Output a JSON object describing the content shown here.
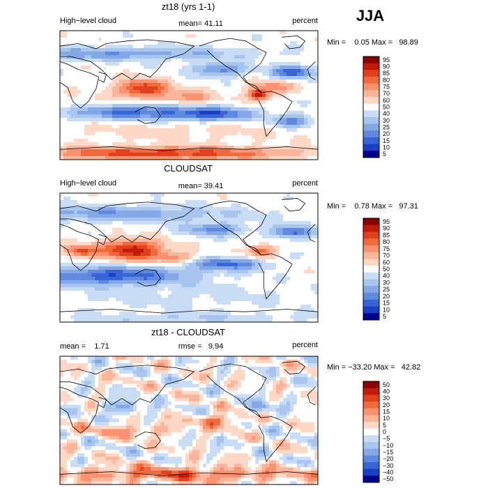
{
  "season_label": "JJA",
  "chart_data": [
    {
      "type": "heatmap",
      "title": "zt18 (yrs 1-1)",
      "left_label": "High−level cloud",
      "center_label": "mean=  41.11",
      "right_label": "percent",
      "stats_label": "Min =    0.05 Max =   98.89",
      "mean": 41.11,
      "min": 0.05,
      "max": 98.89,
      "units": "percent",
      "colorbar_levels": [
        "95",
        "90",
        "85",
        "80",
        "75",
        "70",
        "60",
        "50",
        "40",
        "30",
        "25",
        "20",
        "15",
        "10",
        "5"
      ],
      "colorbar_colors": [
        "#8b0000",
        "#c21a0a",
        "#e0401e",
        "#f06a3c",
        "#f89270",
        "#fbb59a",
        "#fdd8c6",
        "#ffffff",
        "#c9dcf5",
        "#a7c5ee",
        "#84a8e6",
        "#5e89de",
        "#3765d4",
        "#1a3fc4",
        "#00008b"
      ]
    },
    {
      "type": "heatmap",
      "title": "CLOUDSAT",
      "left_label": "High−level cloud",
      "center_label": "mean=  39.41",
      "right_label": "percent",
      "stats_label": "Min =    0.78 Max =   97.31",
      "mean": 39.41,
      "min": 0.78,
      "max": 97.31,
      "units": "percent",
      "colorbar_levels": [
        "95",
        "90",
        "85",
        "80",
        "75",
        "70",
        "60",
        "50",
        "40",
        "30",
        "25",
        "20",
        "15",
        "10",
        "5"
      ],
      "colorbar_colors": [
        "#8b0000",
        "#c21a0a",
        "#e0401e",
        "#f06a3c",
        "#f89270",
        "#fbb59a",
        "#fdd8c6",
        "#ffffff",
        "#c9dcf5",
        "#a7c5ee",
        "#84a8e6",
        "#5e89de",
        "#3765d4",
        "#1a3fc4",
        "#00008b"
      ]
    },
    {
      "type": "heatmap",
      "title": "zt18 - CLOUDSAT",
      "left_label": "mean =    1.71",
      "center_label": "rmse =   9.94",
      "right_label": "percent",
      "stats_label": "Min = −33.20 Max =   42.82",
      "mean": 1.71,
      "rmse": 9.94,
      "min": -33.2,
      "max": 42.82,
      "units": "percent",
      "colorbar_levels": [
        "50",
        "40",
        "30",
        "20",
        "15",
        "10",
        "5",
        "0",
        "−5",
        "−10",
        "−15",
        "−20",
        "−30",
        "−40",
        "−50"
      ],
      "colorbar_colors": [
        "#8b0000",
        "#c21a0a",
        "#e0401e",
        "#f06a3c",
        "#f89270",
        "#fbb59a",
        "#fdd8c6",
        "#ffffff",
        "#c9dcf5",
        "#a7c5ee",
        "#84a8e6",
        "#5e89de",
        "#3765d4",
        "#1a3fc4",
        "#00008b"
      ]
    }
  ]
}
